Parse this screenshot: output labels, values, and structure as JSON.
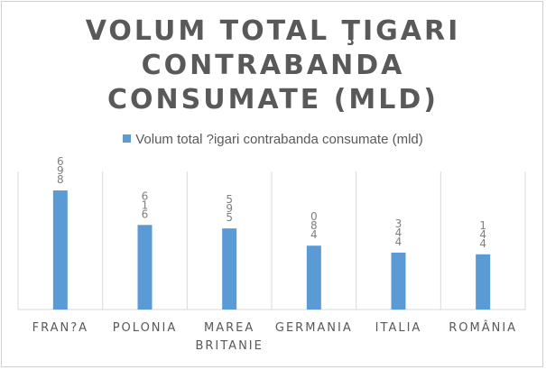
{
  "chart_data": {
    "type": "bar",
    "title_lines": [
      "VOLUM TOTAL ŢIGARI",
      "CONTRABANDA",
      "CONSUMATE (MLD)"
    ],
    "legend": "Volum total ?igari contrabanda consumate (mld)",
    "categories": [
      [
        "FRAN?A"
      ],
      [
        "POLONIA"
      ],
      [
        "MAREA",
        "BRITANIE"
      ],
      [
        "GERMANIA"
      ],
      [
        "ITALIA"
      ],
      [
        "ROMÂNIA"
      ]
    ],
    "series": [
      {
        "name": "Volum total ?igari contrabanda consumate (mld)",
        "values": [
          6.9,
          4.9,
          4.7,
          3.7,
          3.3,
          3.2
        ],
        "data_labels": [
          [
            "6",
            "9",
            "8"
          ],
          [
            "6",
            "1",
            "6"
          ],
          [
            "5",
            "9",
            "5"
          ],
          [
            "0",
            "8",
            "4"
          ],
          [
            "3",
            "4",
            "4"
          ],
          [
            "1",
            "4",
            "4"
          ]
        ]
      }
    ],
    "ylim": [
      0,
      8
    ],
    "grid": "vertical category separators",
    "legend_position": "top",
    "color": "#5b9bd5"
  }
}
